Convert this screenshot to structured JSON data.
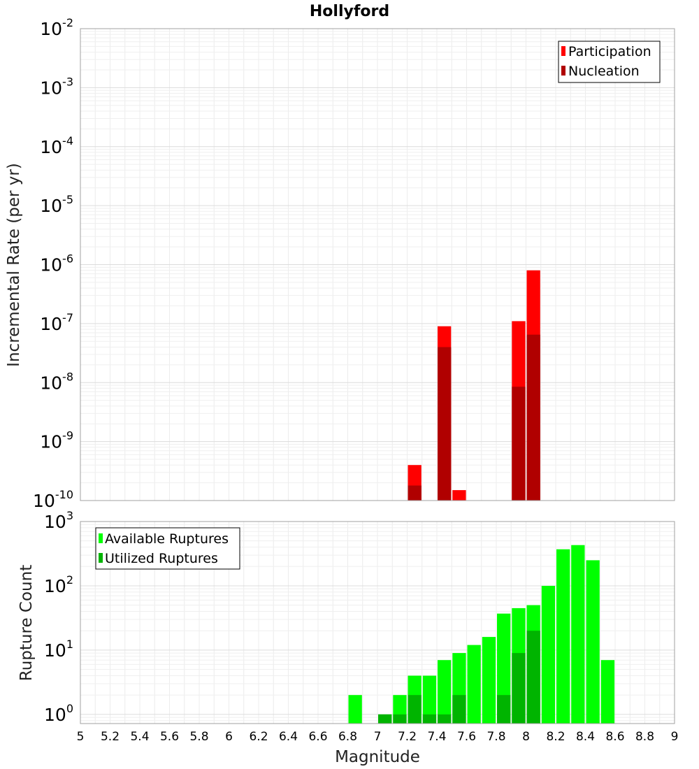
{
  "chart_data": {
    "type": "bar",
    "title": "Hollyford",
    "xlabel": "Magnitude",
    "xlim": [
      5,
      9
    ],
    "xticks": [
      "5",
      "5.2",
      "5.4",
      "5.6",
      "5.8",
      "6",
      "6.2",
      "6.4",
      "6.6",
      "6.8",
      "7",
      "7.2",
      "7.4",
      "7.6",
      "7.8",
      "8",
      "8.2",
      "8.4",
      "8.6",
      "8.8",
      "9"
    ],
    "bin_width": 0.1,
    "panels": [
      {
        "name": "rates",
        "ylabel": "Incremental Rate (per yr)",
        "yscale": "log",
        "ylim_exp": [
          -10,
          -2
        ],
        "yticks": [
          {
            "base": "10",
            "exp": "-2"
          },
          {
            "base": "10",
            "exp": "-3"
          },
          {
            "base": "10",
            "exp": "-4"
          },
          {
            "base": "10",
            "exp": "-5"
          },
          {
            "base": "10",
            "exp": "-6"
          },
          {
            "base": "10",
            "exp": "-7"
          },
          {
            "base": "10",
            "exp": "-8"
          },
          {
            "base": "10",
            "exp": "-9"
          },
          {
            "base": "10",
            "exp": "-10"
          }
        ],
        "legend_position": "top-right",
        "series": [
          {
            "name": "Participation",
            "color": "#ff0000",
            "x": [
              7.25,
              7.45,
              7.55,
              7.95,
              8.05
            ],
            "values": [
              4e-10,
              9e-08,
              1.5e-10,
              1.1e-07,
              8e-07
            ]
          },
          {
            "name": "Nucleation",
            "color": "#b00000",
            "x": [
              7.25,
              7.45,
              7.95,
              8.05
            ],
            "values": [
              1.8e-10,
              4e-08,
              8.5e-09,
              6.5e-08
            ]
          }
        ]
      },
      {
        "name": "counts",
        "ylabel": "Rupture Count",
        "yscale": "log",
        "ylim": [
          0.72,
          1000
        ],
        "yticks": [
          {
            "base": "10",
            "exp": "3"
          },
          {
            "base": "10",
            "exp": "2"
          },
          {
            "base": "10",
            "exp": "1"
          },
          {
            "base": "10",
            "exp": "0"
          }
        ],
        "legend_position": "top-left",
        "series": [
          {
            "name": "Available Ruptures",
            "color": "#00ff00",
            "x": [
              6.85,
              7.05,
              7.15,
              7.25,
              7.35,
              7.45,
              7.55,
              7.65,
              7.75,
              7.85,
              7.95,
              8.05,
              8.15,
              8.25,
              8.35,
              8.45,
              8.55
            ],
            "values": [
              2,
              1,
              2,
              4,
              4,
              7,
              9,
              12,
              16,
              37,
              45,
              50,
              100,
              370,
              430,
              250,
              7
            ]
          },
          {
            "name": "Utilized Ruptures",
            "color": "#00b400",
            "x": [
              7.05,
              7.15,
              7.25,
              7.35,
              7.45,
              7.55,
              7.85,
              7.95,
              8.05
            ],
            "values": [
              1,
              1,
              2,
              1,
              1,
              2,
              2,
              9,
              20
            ]
          }
        ]
      }
    ]
  }
}
